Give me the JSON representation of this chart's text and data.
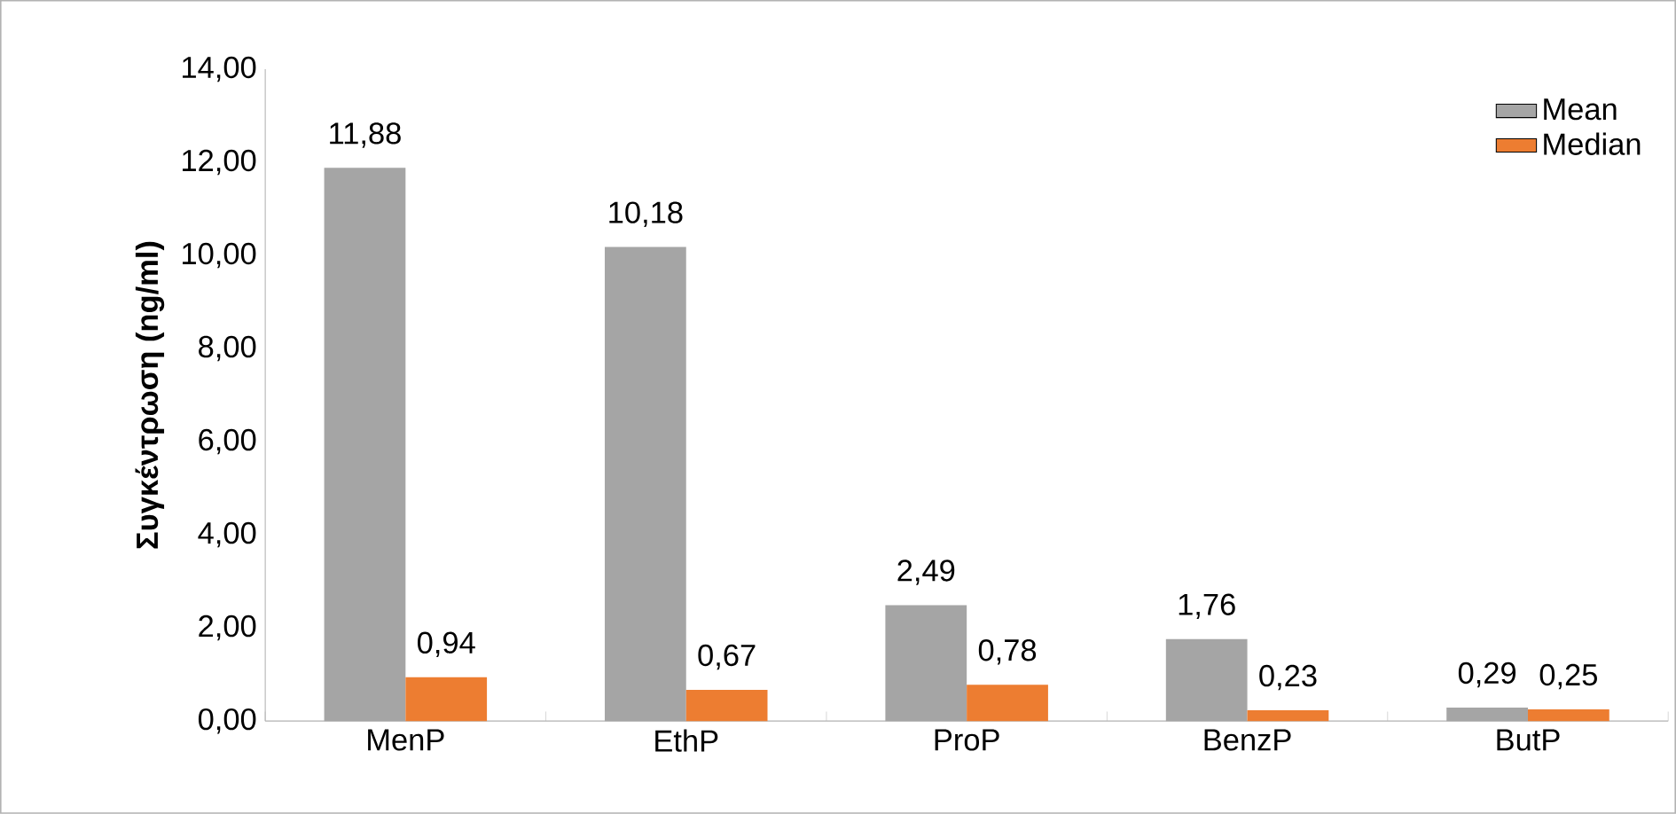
{
  "chart_data": {
    "type": "bar",
    "ylabel": "Συγκέντρωση (ng/ml)",
    "categories": [
      "MenP",
      "EthP",
      "ProP",
      "BenzP",
      "ButP"
    ],
    "series": [
      {
        "name": "Mean",
        "color": "#a5a5a5",
        "values": [
          11.88,
          10.18,
          2.49,
          1.76,
          0.29
        ],
        "value_labels": [
          "11,88",
          "10,18",
          "2,49",
          "1,76",
          "0,29"
        ]
      },
      {
        "name": "Median",
        "color": "#ed7d31",
        "values": [
          0.94,
          0.67,
          0.78,
          0.23,
          0.25
        ],
        "value_labels": [
          "0,94",
          "0,67",
          "0,78",
          "0,23",
          "0,25"
        ]
      }
    ],
    "ylim": [
      0,
      14
    ],
    "yticks": [
      {
        "value": 0,
        "label": "0,00"
      },
      {
        "value": 2,
        "label": "2,00"
      },
      {
        "value": 4,
        "label": "4,00"
      },
      {
        "value": 6,
        "label": "6,00"
      },
      {
        "value": 8,
        "label": "8,00"
      },
      {
        "value": 10,
        "label": "10,00"
      },
      {
        "value": 12,
        "label": "12,00"
      },
      {
        "value": 14,
        "label": "14,00"
      }
    ],
    "grid": false,
    "legend": "top right"
  }
}
